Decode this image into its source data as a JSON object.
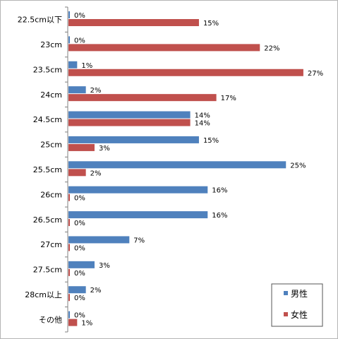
{
  "chart_data": {
    "type": "bar",
    "orientation": "horizontal",
    "categories": [
      "22.5cm以下",
      "23cm",
      "23.5cm",
      "24cm",
      "24.5cm",
      "25cm",
      "25.5cm",
      "26cm",
      "26.5cm",
      "27cm",
      "27.5cm",
      "28cm以上",
      "その他"
    ],
    "series": [
      {
        "name": "男性",
        "color": "#4f81bd",
        "values": [
          0,
          0,
          1,
          2,
          14,
          15,
          25,
          16,
          16,
          7,
          3,
          2,
          0
        ]
      },
      {
        "name": "女性",
        "color": "#c0504d",
        "values": [
          15,
          22,
          27,
          17,
          14,
          3,
          2,
          0,
          0,
          0,
          0,
          0,
          1
        ]
      }
    ],
    "value_suffix": "%",
    "xlim": [
      0,
      29
    ],
    "grid": false,
    "legend": "bottom-right"
  }
}
